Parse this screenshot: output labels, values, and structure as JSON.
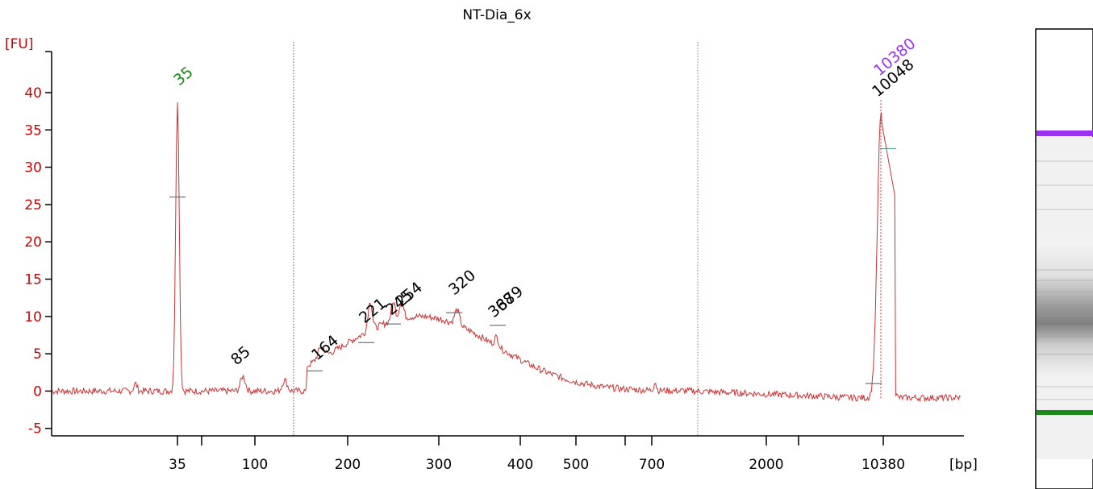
{
  "chart_data": {
    "type": "line",
    "title": "NT-Dia_6x",
    "ylabel": "[FU]",
    "xlabel": "[bp]",
    "ylim": [
      -6,
      46
    ],
    "y_ticks": [
      -5,
      0,
      5,
      10,
      15,
      20,
      25,
      30,
      35,
      40
    ],
    "x_tick_labels": [
      "35",
      "100",
      "200",
      "300",
      "400",
      "500",
      "700",
      "2000",
      "10380"
    ],
    "grid": false,
    "colors": {
      "trace": "#cc3333",
      "axis_labels": "#cc0000",
      "lower_marker": "#1a8a1a",
      "upper_marker": "#9933ee"
    },
    "peak_labels": [
      {
        "text": "35",
        "color": "#1a8a1a"
      },
      {
        "text": "85",
        "color": "#000000"
      },
      {
        "text": "164",
        "color": "#000000"
      },
      {
        "text": "221",
        "color": "#000000"
      },
      {
        "text": "245",
        "color": "#000000"
      },
      {
        "text": "254",
        "color": "#000000"
      },
      {
        "text": "320",
        "color": "#000000"
      },
      {
        "text": "368",
        "color": "#000000"
      },
      {
        "text": "379",
        "color": "#000000"
      },
      {
        "text": "10380",
        "color": "#9933ee"
      },
      {
        "text": "10048",
        "color": "#000000"
      }
    ],
    "series": [
      {
        "peaks": [
          {
            "x": 35,
            "y": 39
          },
          {
            "x": 85,
            "y": 2
          },
          {
            "x": 164,
            "y": 2.5
          },
          {
            "x": 221,
            "y": 8
          },
          {
            "x": 245,
            "y": 9
          },
          {
            "x": 254,
            "y": 10
          },
          {
            "x": 320,
            "y": 11.5
          },
          {
            "x": 368,
            "y": 9
          },
          {
            "x": 379,
            "y": 8.5
          },
          {
            "x": 10048,
            "y": 38
          },
          {
            "x": 10380,
            "y": 39.5
          }
        ]
      }
    ]
  }
}
